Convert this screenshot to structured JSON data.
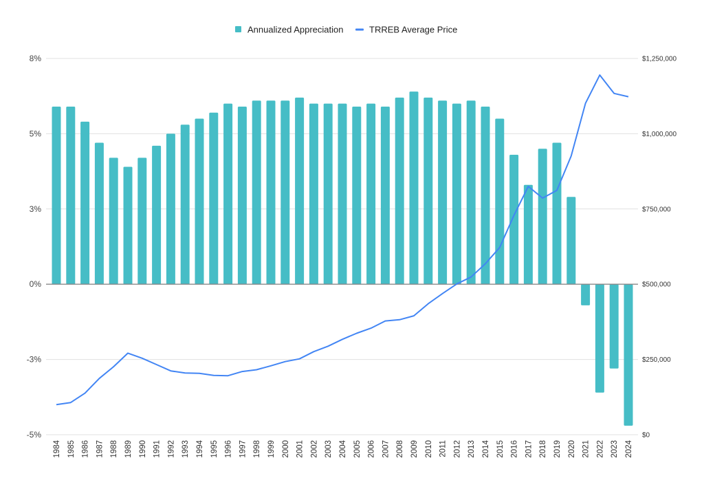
{
  "chart_data": {
    "type": "bar",
    "title": "",
    "xlabel": "",
    "ylabel": "",
    "legend": {
      "position": "top",
      "entries": [
        "Annualized Appreciation",
        "TRREB Average Price"
      ]
    },
    "categories": [
      "1984",
      "1985",
      "1986",
      "1987",
      "1988",
      "1989",
      "1990",
      "1991",
      "1992",
      "1993",
      "1994",
      "1995",
      "1996",
      "1997",
      "1998",
      "1999",
      "2000",
      "2001",
      "2002",
      "2003",
      "2004",
      "2005",
      "2006",
      "2007",
      "2008",
      "2009",
      "2010",
      "2011",
      "2012",
      "2013",
      "2014",
      "2015",
      "2016",
      "2017",
      "2018",
      "2019",
      "2020",
      "2021",
      "2022",
      "2023",
      "2024"
    ],
    "series": [
      {
        "name": "Annualized Appreciation",
        "type": "bar",
        "axis": "left",
        "color": "#46BDC6",
        "values": [
          5.9,
          5.9,
          5.4,
          4.7,
          4.2,
          3.9,
          4.2,
          4.6,
          5.0,
          5.3,
          5.5,
          5.7,
          6.0,
          5.9,
          6.1,
          6.1,
          6.1,
          6.2,
          6.0,
          6.0,
          6.0,
          5.9,
          6.0,
          5.9,
          6.2,
          6.4,
          6.2,
          6.1,
          6.0,
          6.1,
          5.9,
          5.5,
          4.3,
          3.3,
          4.5,
          4.7,
          2.9,
          -0.7,
          -3.6,
          -2.8,
          -4.7
        ]
      },
      {
        "name": "TRREB Average Price",
        "type": "line",
        "axis": "right",
        "color": "#4285F4",
        "values": [
          100000,
          107000,
          138000,
          187000,
          226000,
          271000,
          254000,
          233000,
          212000,
          205000,
          204000,
          197000,
          196000,
          210000,
          216000,
          229000,
          243000,
          252000,
          276000,
          294000,
          317000,
          337000,
          354000,
          378000,
          382000,
          395000,
          435000,
          469000,
          501000,
          524000,
          568000,
          622000,
          729000,
          825000,
          786000,
          812000,
          926000,
          1101000,
          1195000,
          1134000,
          1123000
        ]
      }
    ],
    "y_left": {
      "ylim": [
        -5,
        7.5
      ],
      "ticks": [
        -5,
        -2.5,
        0,
        2.5,
        5,
        7.5
      ],
      "tick_labels": [
        "-5%",
        "-3%",
        "0%",
        "3%",
        "5%",
        "8%"
      ]
    },
    "y_right": {
      "ylim": [
        0,
        1250000
      ],
      "ticks": [
        0,
        250000,
        500000,
        750000,
        1000000,
        1250000
      ],
      "tick_labels": [
        "$0",
        "$250,000",
        "$500,000",
        "$750,000",
        "$1,000,000",
        "$1,250,000"
      ]
    },
    "grid": true,
    "gridline_color": "#e0e0e0",
    "zero_line_color": "#888888"
  }
}
